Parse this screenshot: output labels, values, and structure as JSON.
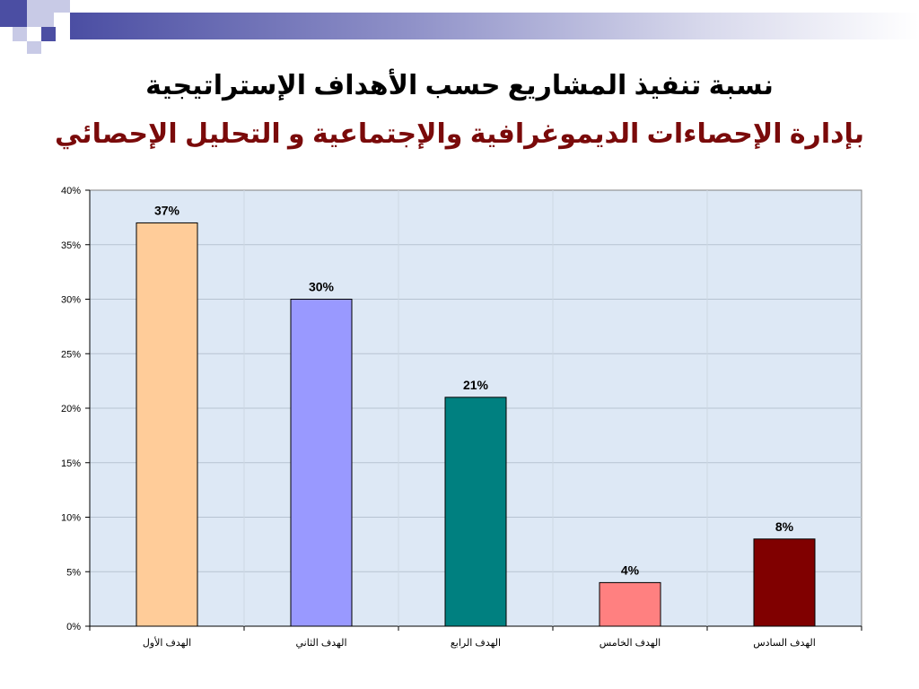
{
  "slide": {
    "title_line1": "نسبة تنفيذ المشاريع حسب الأهداف الإستراتيجية",
    "title_line2": "بإدارة الإحصاءات الديموغرافية والإجتماعية و التحليل الإحصائي",
    "title_line2_color": "#7a0a0a",
    "accent_color": "#4b4ea3"
  },
  "chart_data": {
    "type": "bar",
    "title": "",
    "xlabel": "",
    "ylabel": "",
    "categories": [
      "الهدف الأول",
      "الهدف الثاني",
      "الهدف الرابع",
      "الهدف الخامس",
      "الهدف السادس"
    ],
    "values": [
      37,
      30,
      21,
      4,
      8
    ],
    "value_labels": [
      "37%",
      "30%",
      "21%",
      "4%",
      "8%"
    ],
    "colors": [
      "#ffcc99",
      "#9999ff",
      "#008080",
      "#ff8080",
      "#800000"
    ],
    "ylim": [
      0,
      40
    ],
    "yticks": [
      "0%",
      "5%",
      "10%",
      "15%",
      "20%",
      "25%",
      "30%",
      "35%",
      "40%"
    ],
    "grid": true,
    "legend": "none",
    "plot_background": "#dde8f5"
  }
}
